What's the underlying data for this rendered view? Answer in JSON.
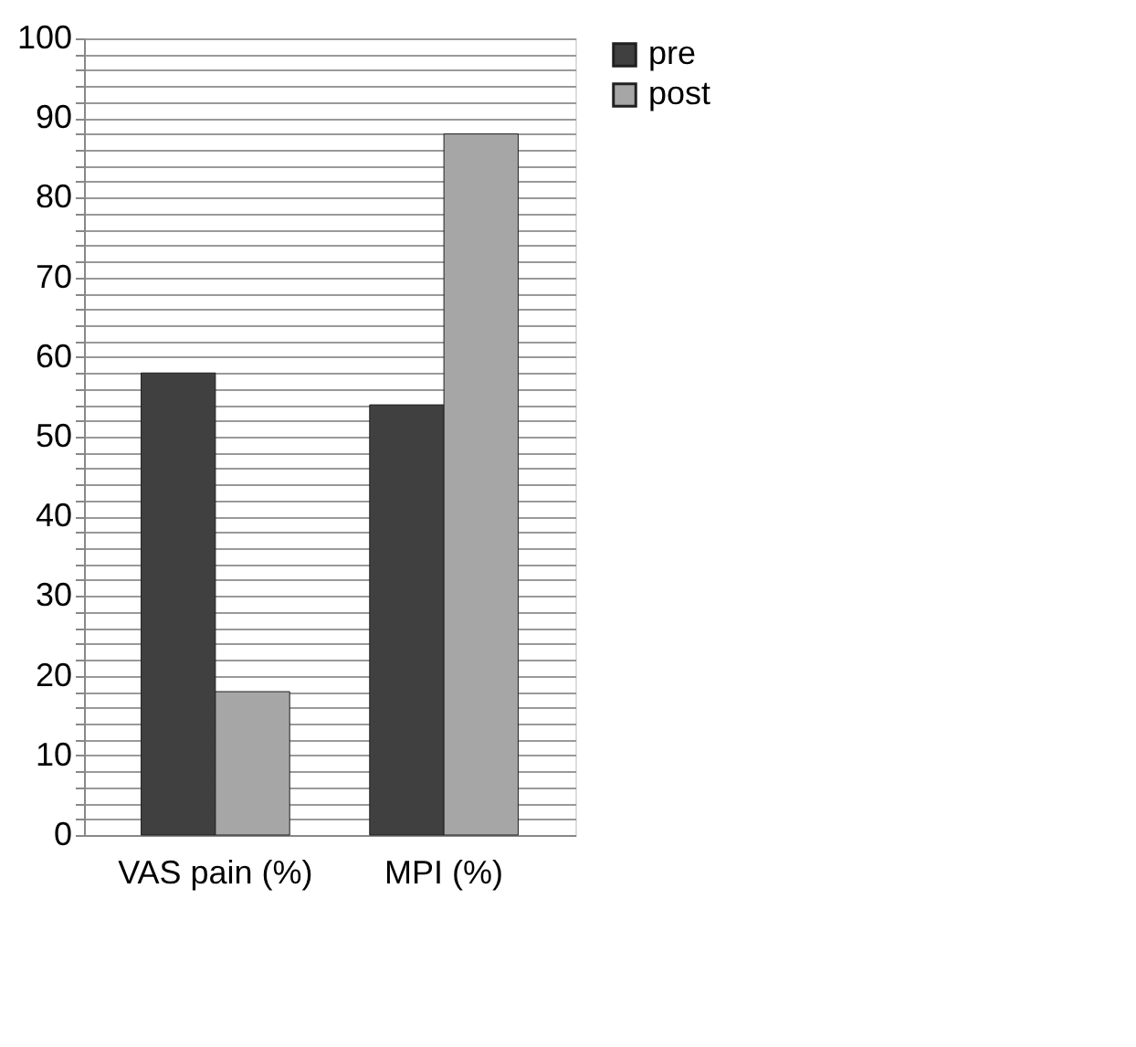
{
  "chart_data": {
    "type": "bar",
    "categories": [
      "VAS pain (%)",
      "MPI (%)"
    ],
    "series": [
      {
        "name": "pre",
        "color": "#404040",
        "values": [
          58,
          54
        ]
      },
      {
        "name": "post",
        "color": "#a6a6a6",
        "values": [
          18,
          88
        ]
      }
    ],
    "ylim": [
      0,
      100
    ],
    "yticks": [
      0,
      {
        "value": 2,
        "label": null
      },
      {
        "value": 4,
        "label": null
      },
      {
        "value": 6,
        "label": null
      },
      {
        "value": 8,
        "label": null
      },
      10,
      {
        "value": 12,
        "label": null
      },
      {
        "value": 14,
        "label": null
      },
      {
        "value": 16,
        "label": null
      },
      {
        "value": 18,
        "label": null
      },
      20,
      {
        "value": 22,
        "label": null
      },
      {
        "value": 24,
        "label": null
      },
      {
        "value": 26,
        "label": null
      },
      {
        "value": 28,
        "label": null
      },
      30,
      {
        "value": 32,
        "label": null
      },
      {
        "value": 34,
        "label": null
      },
      {
        "value": 36,
        "label": null
      },
      {
        "value": 38,
        "label": null
      },
      40,
      {
        "value": 42,
        "label": null
      },
      {
        "value": 44,
        "label": null
      },
      {
        "value": 46,
        "label": null
      },
      {
        "value": 48,
        "label": null
      },
      50,
      {
        "value": 52,
        "label": null
      },
      {
        "value": 54,
        "label": null
      },
      {
        "value": 56,
        "label": null
      },
      {
        "value": 58,
        "label": null
      },
      60,
      {
        "value": 62,
        "label": null
      },
      {
        "value": 64,
        "label": null
      },
      {
        "value": 66,
        "label": null
      },
      {
        "value": 68,
        "label": null
      },
      70,
      {
        "value": 72,
        "label": null
      },
      {
        "value": 74,
        "label": null
      },
      {
        "value": 76,
        "label": null
      },
      {
        "value": 78,
        "label": null
      },
      80,
      {
        "value": 82,
        "label": null
      },
      {
        "value": 84,
        "label": null
      },
      {
        "value": 86,
        "label": null
      },
      {
        "value": 88,
        "label": null
      },
      90,
      {
        "value": 92,
        "label": null
      },
      {
        "value": 94,
        "label": null
      },
      {
        "value": 96,
        "label": null
      },
      {
        "value": 98,
        "label": null
      },
      100
    ],
    "grid": "y",
    "legend": "right"
  }
}
